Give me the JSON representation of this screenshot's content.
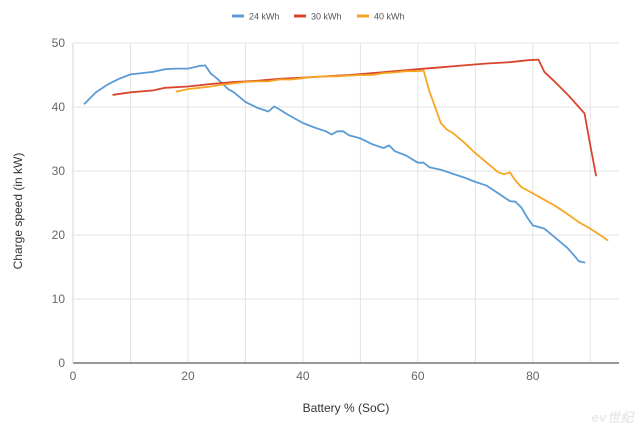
{
  "chart_data": {
    "type": "line",
    "xlabel": "Battery % (SoC)",
    "ylabel": "Charge speed (in kW)",
    "xlim": [
      0,
      95
    ],
    "ylim": [
      0,
      50
    ],
    "x_ticks": [
      0,
      20,
      40,
      60,
      80
    ],
    "y_ticks": [
      0,
      10,
      20,
      30,
      40,
      50
    ],
    "grid": true,
    "legend_position": "top-center",
    "series": [
      {
        "name": "24 kWh",
        "color": "#5b9bd5",
        "points": [
          [
            2,
            40.5
          ],
          [
            4,
            42.3
          ],
          [
            6,
            43.5
          ],
          [
            8,
            44.4
          ],
          [
            10,
            45.1
          ],
          [
            12,
            45.3
          ],
          [
            14,
            45.5
          ],
          [
            16,
            45.9
          ],
          [
            18,
            46
          ],
          [
            20,
            46
          ],
          [
            22,
            46.4
          ],
          [
            23,
            46.5
          ],
          [
            24,
            45.2
          ],
          [
            25,
            44.5
          ],
          [
            27,
            42.8
          ],
          [
            28,
            42.3
          ],
          [
            30,
            40.8
          ],
          [
            32,
            39.9
          ],
          [
            34,
            39.3
          ],
          [
            35,
            40.1
          ],
          [
            36,
            39.6
          ],
          [
            37,
            39
          ],
          [
            38,
            38.5
          ],
          [
            40,
            37.5
          ],
          [
            42,
            36.8
          ],
          [
            44,
            36.2
          ],
          [
            45,
            35.7
          ],
          [
            46,
            36.2
          ],
          [
            47,
            36.2
          ],
          [
            48,
            35.6
          ],
          [
            50,
            35.1
          ],
          [
            52,
            34.2
          ],
          [
            54,
            33.6
          ],
          [
            55,
            34
          ],
          [
            56,
            33.1
          ],
          [
            58,
            32.4
          ],
          [
            60,
            31.3
          ],
          [
            61,
            31.3
          ],
          [
            62,
            30.6
          ],
          [
            64,
            30.2
          ],
          [
            66,
            29.6
          ],
          [
            68,
            29
          ],
          [
            70,
            28.3
          ],
          [
            72,
            27.7
          ],
          [
            74,
            26.5
          ],
          [
            76,
            25.3
          ],
          [
            77,
            25.2
          ],
          [
            78,
            24.3
          ],
          [
            79,
            22.8
          ],
          [
            80,
            21.5
          ],
          [
            82,
            21
          ],
          [
            84,
            19.5
          ],
          [
            86,
            18
          ],
          [
            87,
            17
          ],
          [
            88,
            15.9
          ],
          [
            89,
            15.7
          ]
        ]
      },
      {
        "name": "30 kWh",
        "color": "#d9442c",
        "points": [
          [
            7,
            41.9
          ],
          [
            10,
            42.3
          ],
          [
            14,
            42.6
          ],
          [
            16,
            43
          ],
          [
            20,
            43.2
          ],
          [
            24,
            43.6
          ],
          [
            28,
            43.9
          ],
          [
            32,
            44.1
          ],
          [
            36,
            44.4
          ],
          [
            40,
            44.6
          ],
          [
            44,
            44.8
          ],
          [
            48,
            45
          ],
          [
            52,
            45.3
          ],
          [
            56,
            45.6
          ],
          [
            60,
            45.9
          ],
          [
            64,
            46.2
          ],
          [
            68,
            46.5
          ],
          [
            72,
            46.8
          ],
          [
            76,
            47
          ],
          [
            79,
            47.3
          ],
          [
            81,
            47.4
          ],
          [
            82,
            45.5
          ],
          [
            84,
            43.8
          ],
          [
            86,
            42
          ],
          [
            88,
            40
          ],
          [
            89,
            39
          ],
          [
            90,
            34
          ],
          [
            91,
            29.3
          ]
        ]
      },
      {
        "name": "40 kWh",
        "color": "#f5a623",
        "points": [
          [
            18,
            42.4
          ],
          [
            20,
            42.8
          ],
          [
            22,
            43
          ],
          [
            24,
            43.2
          ],
          [
            26,
            43.5
          ],
          [
            28,
            43.7
          ],
          [
            30,
            43.9
          ],
          [
            32,
            44
          ],
          [
            34,
            44
          ],
          [
            36,
            44.3
          ],
          [
            38,
            44.3
          ],
          [
            40,
            44.5
          ],
          [
            42,
            44.7
          ],
          [
            44,
            44.8
          ],
          [
            46,
            44.8
          ],
          [
            48,
            44.9
          ],
          [
            50,
            45
          ],
          [
            52,
            45
          ],
          [
            54,
            45.3
          ],
          [
            56,
            45.4
          ],
          [
            58,
            45.6
          ],
          [
            60,
            45.6
          ],
          [
            61,
            45.7
          ],
          [
            62,
            42.5
          ],
          [
            63,
            40
          ],
          [
            64,
            37.5
          ],
          [
            65,
            36.5
          ],
          [
            66,
            36
          ],
          [
            68,
            34.5
          ],
          [
            70,
            32.8
          ],
          [
            72,
            31.3
          ],
          [
            74,
            29.8
          ],
          [
            75,
            29.5
          ],
          [
            76,
            29.8
          ],
          [
            77,
            28.5
          ],
          [
            78,
            27.5
          ],
          [
            80,
            26.5
          ],
          [
            82,
            25.5
          ],
          [
            84,
            24.5
          ],
          [
            86,
            23.3
          ],
          [
            88,
            22
          ],
          [
            90,
            21
          ],
          [
            92,
            19.8
          ],
          [
            93,
            19.2
          ]
        ]
      }
    ]
  },
  "watermark": "ev世纪"
}
